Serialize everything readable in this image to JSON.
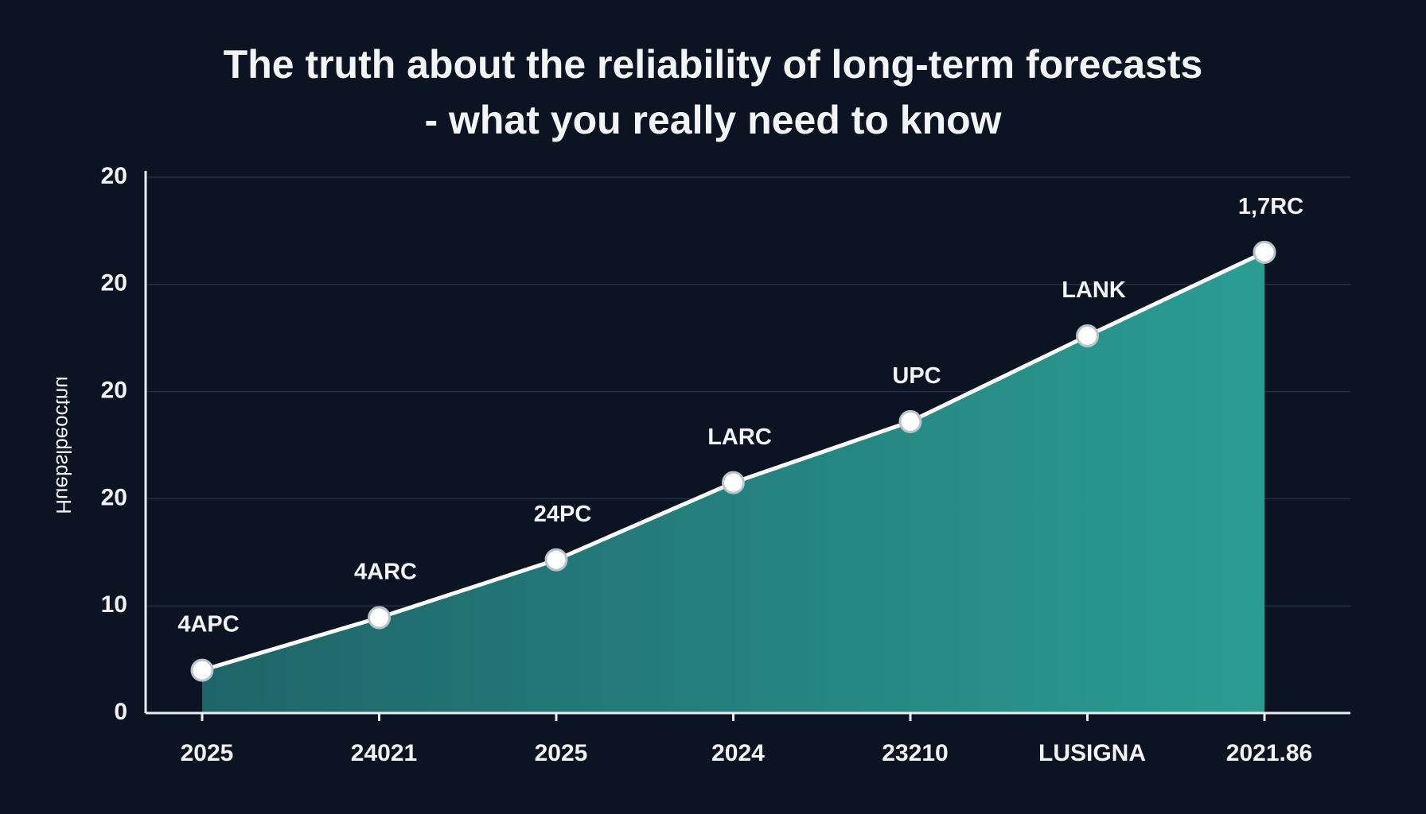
{
  "chart_data": {
    "type": "area",
    "title": "The truth about the reliability of long-term forecasts",
    "subtitle": "- what you really need to know",
    "y_label": "Huebslbeoctnu",
    "categories": [
      "2025",
      "24021",
      "2025",
      "2024",
      "23210",
      "LUSIGNA",
      "2021.86"
    ],
    "values": [
      4.0,
      8.9,
      14.3,
      21.5,
      27.2,
      35.2,
      43.0
    ],
    "point_labels": [
      "4APC",
      "4ARC",
      "24PC",
      "LARC",
      "UPC",
      "LANK",
      "1,7RC"
    ],
    "color": "#2a9d93",
    "line_color": "#ffffff",
    "ylim": [
      0,
      50
    ],
    "yticks": [
      0,
      10,
      20,
      {
        "value": 30,
        "label": "20"
      },
      {
        "value": 40,
        "label": "20"
      },
      {
        "value": 50,
        "label": "20"
      }
    ],
    "grid": true
  }
}
